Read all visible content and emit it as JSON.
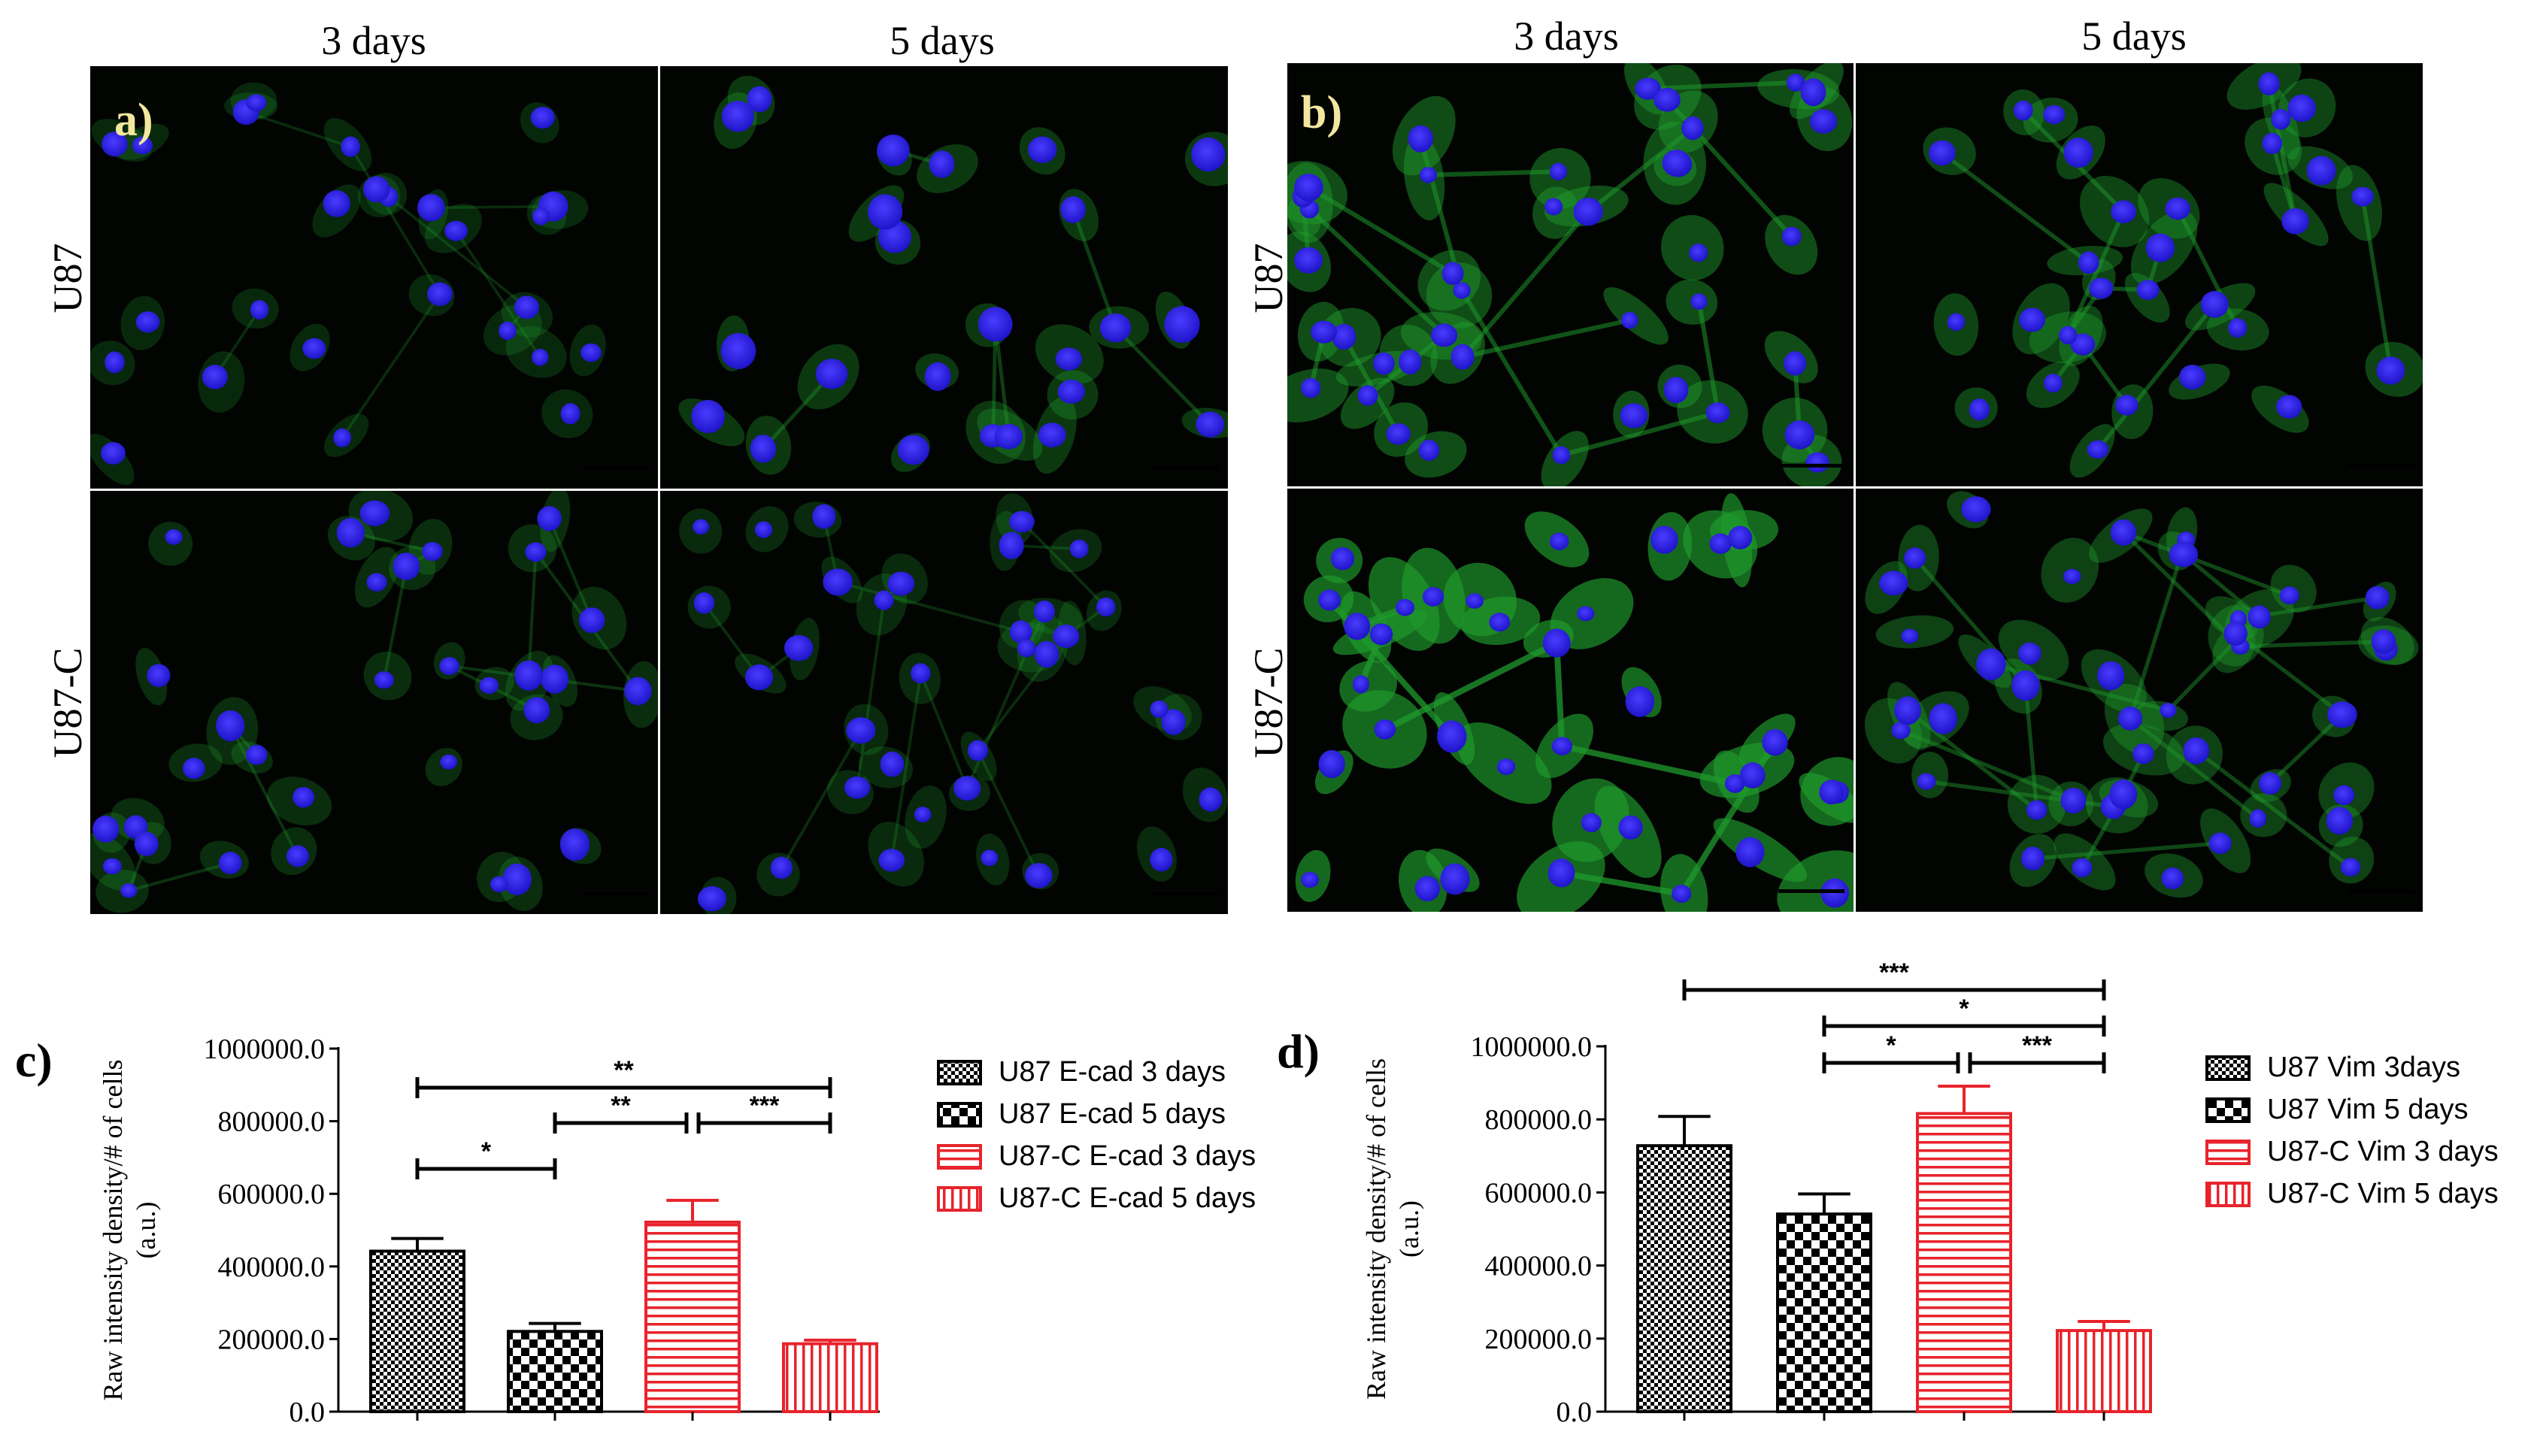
{
  "micrographs": {
    "panel_a": {
      "label": "a)",
      "col_headers": [
        "3 days",
        "5 days"
      ],
      "row_labels": [
        "U87",
        "U87-C"
      ],
      "scale_bar_color": "#e8260d"
    },
    "panel_b": {
      "label": "b)",
      "col_headers": [
        "3 days",
        "5 days"
      ],
      "row_labels": [
        "U87",
        "U87-C"
      ],
      "scale_bar_color": "#e8260d"
    },
    "nucleus_color": "#2b22e6",
    "cytoplasm_color": "#1f9a2c"
  },
  "chart_data": [
    {
      "panel_label": "c)",
      "type": "bar",
      "categories": [
        "U87 E-cad 3 days",
        "U87 E-cad 5 days",
        "U87-C E-cad 3 days",
        "U87-C E-cad 5 days"
      ],
      "values": [
        442000,
        221000,
        522000,
        187000
      ],
      "errors": [
        35000,
        22000,
        60000,
        10000
      ],
      "colors": [
        "#000000",
        "#000000",
        "#e8232b",
        "#e8232b"
      ],
      "patterns": [
        "fine-check",
        "checker",
        "horizontal",
        "vertical"
      ],
      "ylabel": "Raw intensity density/# of cells (a.u.)",
      "ylim": [
        0,
        1000000
      ],
      "yticks": [
        "0.0",
        "200000.0",
        "400000.0",
        "600000.0",
        "800000.0",
        "1000000.0"
      ],
      "legend": [
        "U87 E-cad 3 days",
        "U87 E-cad 5 days",
        "U87-C E-cad 3 days",
        "U87-C E-cad 5 days"
      ],
      "legend_position": "right",
      "significance": [
        {
          "from": 0,
          "to": 3,
          "level": 1,
          "label": "**"
        },
        {
          "from": 1,
          "to": 2,
          "level": 2,
          "label": "**"
        },
        {
          "from": 2,
          "to": 3,
          "level": 2,
          "label": "***"
        },
        {
          "from": 0,
          "to": 1,
          "level": 3,
          "label": "*"
        }
      ]
    },
    {
      "panel_label": "d)",
      "type": "bar",
      "categories": [
        "U87 Vim 3days",
        "U87 Vim 5 days",
        "U87-C Vim 3 days",
        "U87-C Vim 5 days"
      ],
      "values": [
        728000,
        541000,
        816000,
        222000
      ],
      "errors": [
        80000,
        55000,
        75000,
        25000
      ],
      "colors": [
        "#000000",
        "#000000",
        "#e8232b",
        "#e8232b"
      ],
      "patterns": [
        "fine-check",
        "checker",
        "horizontal",
        "vertical"
      ],
      "ylabel": "Raw intensity density/# of cells (a.u.)",
      "ylim": [
        0,
        1000000
      ],
      "yticks": [
        "0.0",
        "200000.0",
        "400000.0",
        "600000.0",
        "800000.0",
        "1000000.0"
      ],
      "legend": [
        "U87 Vim 3days",
        "U87 Vim 5 days",
        "U87-C Vim 3 days",
        "U87-C Vim 5 days"
      ],
      "legend_position": "right",
      "significance": [
        {
          "from": 0,
          "to": 3,
          "level": 1,
          "label": "***"
        },
        {
          "from": 1,
          "to": 3,
          "level": 2,
          "label": "*"
        },
        {
          "from": 1,
          "to": 2,
          "level": 3,
          "label": "*"
        },
        {
          "from": 2,
          "to": 3,
          "level": 3,
          "label": "***"
        }
      ]
    }
  ]
}
